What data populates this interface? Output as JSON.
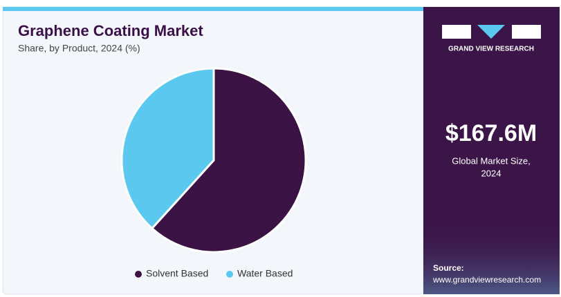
{
  "chart_data": {
    "type": "pie",
    "title": "Graphene Coating Market",
    "subtitle": "Share, by Product, 2024 (%)",
    "categories": [
      "Solvent Based",
      "Water Based"
    ],
    "values": [
      61.7,
      38.3
    ],
    "colors": [
      "#3a1244",
      "#5bc8f0"
    ]
  },
  "panel": {
    "brand": "GRAND VIEW RESEARCH",
    "market_size": "$167.6M",
    "market_label": [
      "Global Market Size,",
      "2024"
    ],
    "source_label": "Source:",
    "source_url": "www.grandviewresearch.com"
  }
}
